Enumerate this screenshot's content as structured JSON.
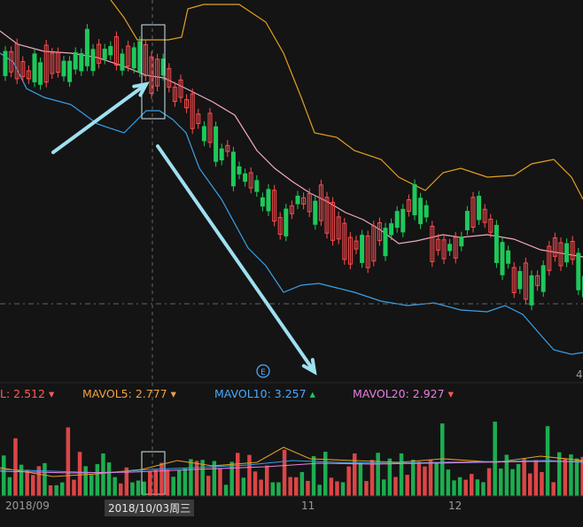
{
  "chart_data": {
    "type": "candlestick",
    "legend": [
      {
        "label": "L:",
        "value": "2.512",
        "color": "#ff5b5b",
        "arrow": "down"
      },
      {
        "label": "MAVOL5:",
        "value": "2.777",
        "color": "#f0a040",
        "arrow": "down"
      },
      {
        "label": "MAVOL10:",
        "value": "3.257",
        "color": "#4aa8ff",
        "arrow": "up"
      },
      {
        "label": "MAVOL20:",
        "value": "2.927",
        "color": "#e87ee0",
        "arrow": "down"
      }
    ],
    "x_labels": [
      {
        "text": "2018/09",
        "selected": false
      },
      {
        "text": "2018/10/03周三",
        "selected": true
      },
      {
        "text": "11",
        "selected": false
      },
      {
        "text": "12",
        "selected": false
      }
    ],
    "price_label": "4",
    "colors": {
      "up": "#ff4d4f",
      "down": "#1fc85a",
      "ma_pink": "#f2a9be",
      "ma_orange": "#e3a020",
      "ma_blue": "#3aa0e8",
      "arrow": "#9ee0f0"
    }
  }
}
